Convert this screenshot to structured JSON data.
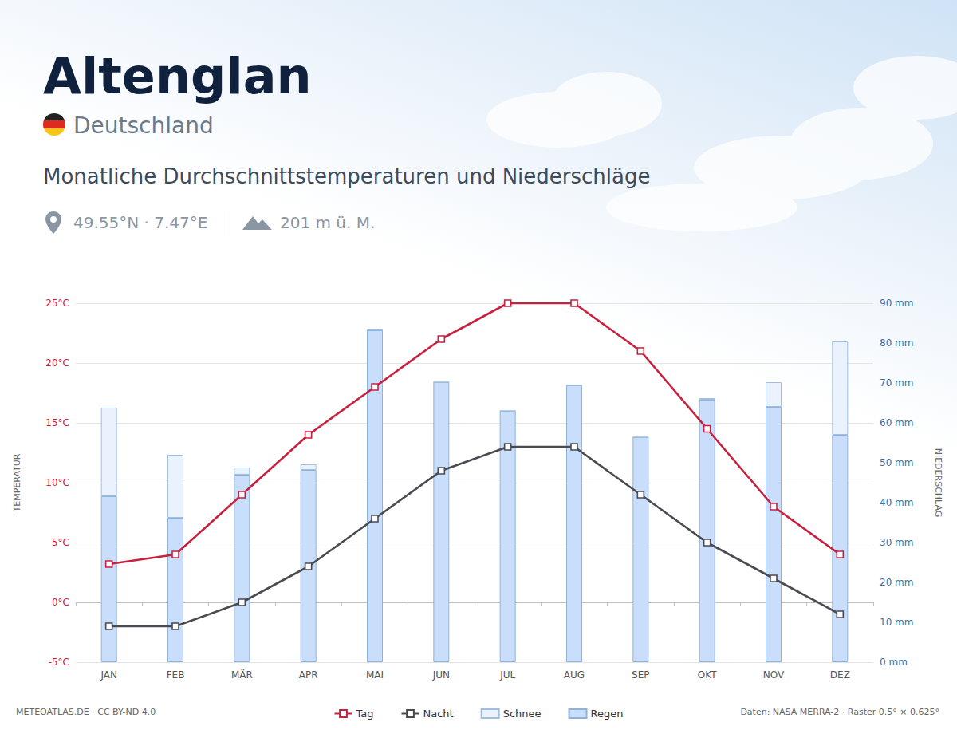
{
  "chart_data": {
    "type": "combo",
    "title": "Altenglan",
    "subtitle": "Deutschland",
    "annotations": {
      "heading": "Monatliche Durchschnittstemperaturen und Niederschläge",
      "coordinates": "49.55°N · 7.47°E",
      "elevation": "201 m ü. M.",
      "credit": "METEOATLAS.DE · CC BY-ND 4.0",
      "data_source": "Daten: NASA MERRA-2 · Raster 0.5° × 0.625°"
    },
    "categories": [
      "JAN",
      "FEB",
      "MÄR",
      "APR",
      "MAI",
      "JUN",
      "JUL",
      "AUG",
      "SEP",
      "OKT",
      "NOV",
      "DEZ"
    ],
    "ylabel": "TEMPERATUR",
    "y2label": "NIEDERSCHLAG",
    "ylim": [
      -5,
      25
    ],
    "yticks": [
      {
        "value": -5,
        "label": "-5°C"
      },
      {
        "value": 0,
        "label": "0°C"
      },
      {
        "value": 5,
        "label": "5°C"
      },
      {
        "value": 10,
        "label": "10°C"
      },
      {
        "value": 15,
        "label": "15°C"
      },
      {
        "value": 20,
        "label": "20°C"
      },
      {
        "value": 25,
        "label": "25°C"
      }
    ],
    "y2lim": [
      0,
      90
    ],
    "y2ticks": [
      {
        "value": 0,
        "label": "0 mm"
      },
      {
        "value": 10,
        "label": "10 mm"
      },
      {
        "value": 20,
        "label": "20 mm"
      },
      {
        "value": 30,
        "label": "30 mm"
      },
      {
        "value": 40,
        "label": "40 mm"
      },
      {
        "value": 50,
        "label": "50 mm"
      },
      {
        "value": 60,
        "label": "60 mm"
      },
      {
        "value": 70,
        "label": "70 mm"
      },
      {
        "value": 80,
        "label": "80 mm"
      },
      {
        "value": 90,
        "label": "90 mm"
      }
    ],
    "grid": true,
    "legend": "bottom",
    "stacked": true,
    "series": [
      {
        "name": "Tag",
        "type": "line",
        "color": "#c8203f",
        "marker": "square",
        "values": [
          3.2,
          4,
          9,
          14,
          18,
          22,
          25,
          25,
          21,
          14.5,
          8,
          4
        ]
      },
      {
        "name": "Nacht",
        "type": "line",
        "color": "#4a4a52",
        "marker": "square",
        "values": [
          -2,
          -2,
          0,
          3,
          7,
          11,
          13,
          13,
          9,
          5,
          2,
          -1
        ]
      },
      {
        "name": "Schnee",
        "type": "bar",
        "axis": "y2",
        "color": "#eaf3fd",
        "values": [
          22.2,
          15.8,
          1.8,
          1.4,
          0.4,
          0,
          0,
          0,
          0,
          0.4,
          6.2,
          23.4
        ]
      },
      {
        "name": "Regen",
        "type": "bar",
        "axis": "y2",
        "color": "#c9defa",
        "values": [
          41.6,
          36.2,
          47,
          48.2,
          83.2,
          70.2,
          63,
          69.4,
          56.4,
          65.8,
          64,
          57
        ]
      }
    ]
  }
}
